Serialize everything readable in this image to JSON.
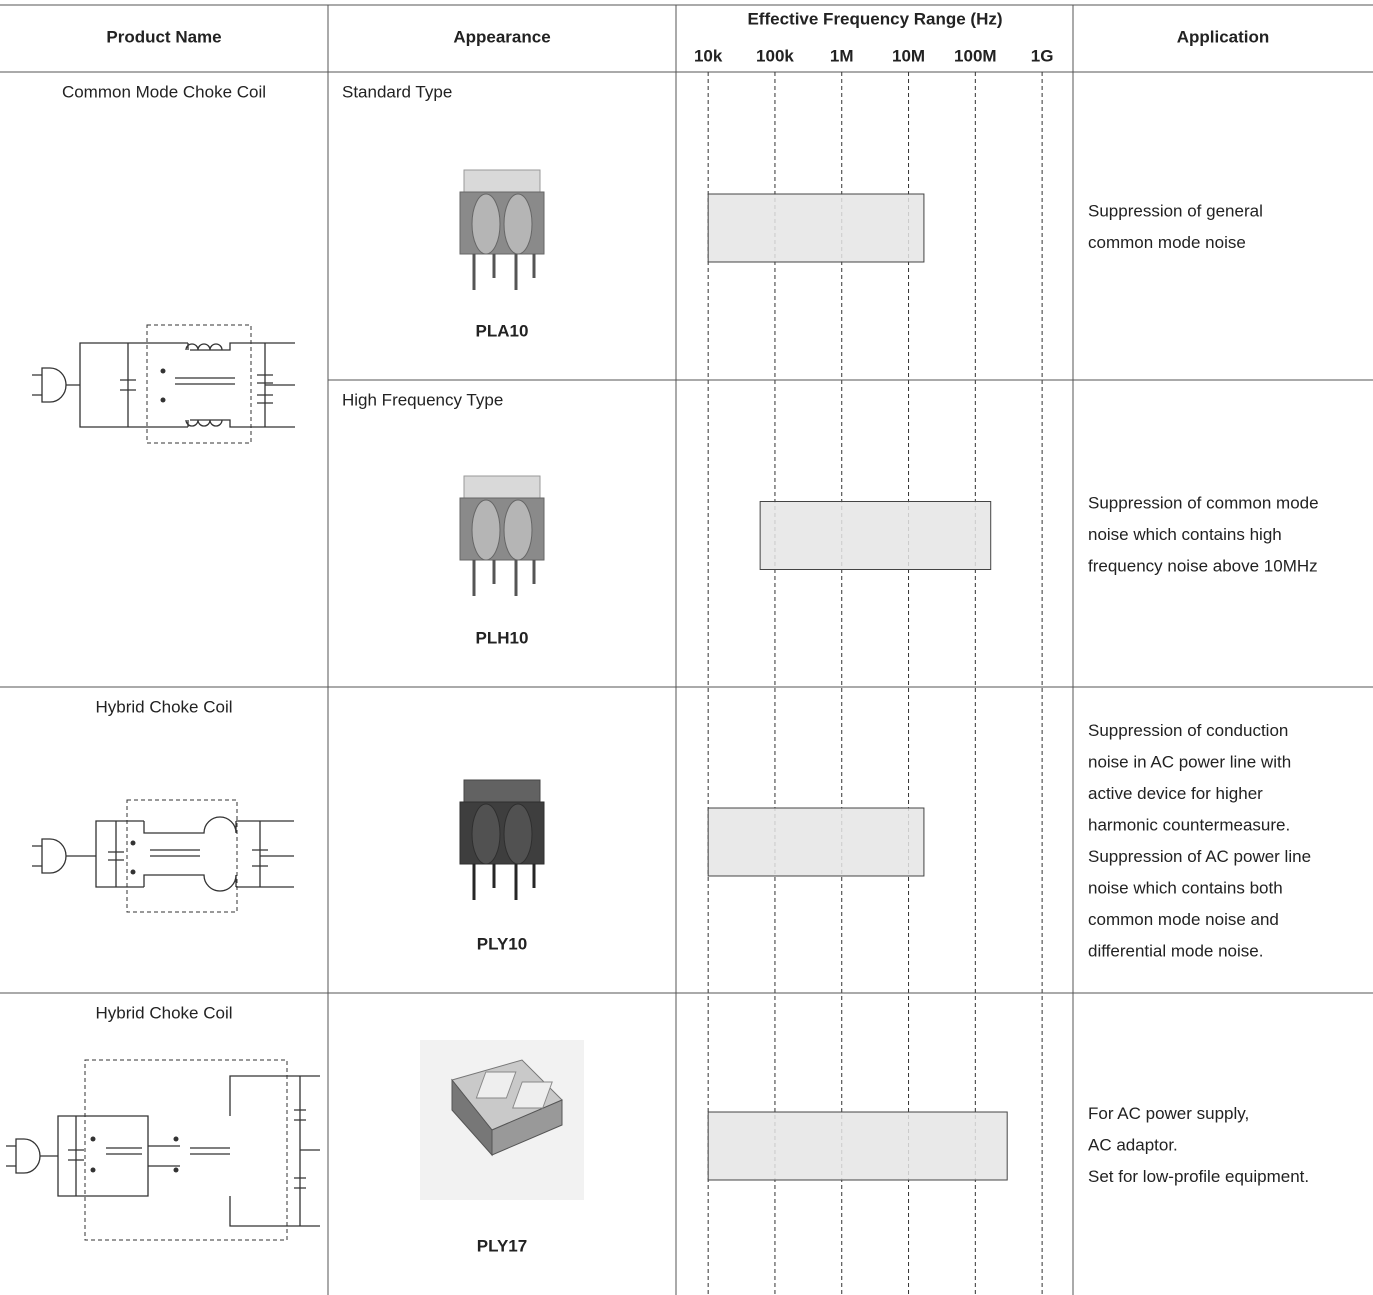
{
  "table": {
    "headers": {
      "product_name": "Product Name",
      "appearance": "Appearance",
      "frequency": "Effective Frequency Range (Hz)",
      "application": "Application"
    },
    "frequency_axis": {
      "log_scale": true,
      "xlim": [
        3300,
        2900000000
      ],
      "ticks": [
        {
          "value": 10000,
          "label": "10k"
        },
        {
          "value": 100000,
          "label": "100k"
        },
        {
          "value": 1000000,
          "label": "1M"
        },
        {
          "value": 10000000,
          "label": "10M"
        },
        {
          "value": 100000000,
          "label": "100M"
        },
        {
          "value": 1000000000,
          "label": "1G"
        }
      ]
    },
    "products": [
      {
        "name": "Common Mode Choke Coil",
        "variants": [
          {
            "type": "Standard Type",
            "part": "PLA10",
            "range": [
              10000,
              17000000
            ],
            "application": [
              "Suppression of general",
              "common mode noise"
            ]
          },
          {
            "type": "High Frequency Type",
            "part": "PLH10",
            "range": [
              60000,
              170000000
            ],
            "application": [
              "Suppression of common mode",
              "noise which contains high",
              "frequency noise above 10MHz"
            ]
          }
        ]
      },
      {
        "name": "Hybrid Choke Coil",
        "variants": [
          {
            "part": "PLY10",
            "range": [
              10000,
              17000000
            ],
            "application": [
              "Suppression of conduction",
              "noise in AC power line with",
              "active device for higher",
              "harmonic countermeasure.",
              "Suppression of AC power line",
              "noise which contains both",
              "common mode noise and",
              "differential mode noise."
            ]
          }
        ]
      },
      {
        "name": "Hybrid Choke Coil",
        "variants": [
          {
            "part": "PLY17",
            "range": [
              10000,
              300000000
            ],
            "application": [
              "For AC power supply,",
              "AC adaptor.",
              "Set for low-profile equipment."
            ]
          }
        ]
      }
    ]
  }
}
